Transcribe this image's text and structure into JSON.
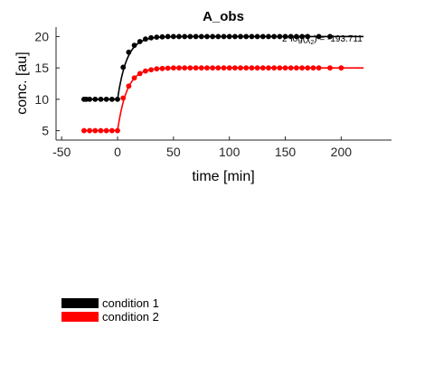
{
  "chart_data": {
    "type": "line",
    "title": "A_obs",
    "xlabel": "time [min]",
    "ylabel": "conc. [au]",
    "xlim": [
      -55,
      245
    ],
    "ylim": [
      3.5,
      21.5
    ],
    "xticks": [
      -50,
      0,
      50,
      100,
      150,
      200
    ],
    "yticks": [
      5,
      10,
      15,
      20
    ],
    "xtick_labels": [
      "-50",
      "0",
      "50",
      "100",
      "150",
      "200"
    ],
    "ytick_labels": [
      "5",
      "10",
      "15",
      "20"
    ],
    "annotation": "2*log(χ²) = -193.711",
    "annotation_parts": {
      "prefix": "2*log(χ",
      "sup": "2",
      "suffix": ") = -193.711"
    },
    "legend_position": "bottom-left (below axes)",
    "series": [
      {
        "name": "condition 1",
        "color": "#000000",
        "baseline": 10,
        "plateau": 20,
        "rate": 0.12,
        "observed_x": [
          -30,
          -28,
          -25,
          -20,
          -15,
          -10,
          -5,
          0,
          5,
          10,
          15,
          20,
          25,
          30,
          35,
          40,
          45,
          50,
          55,
          60,
          65,
          70,
          75,
          80,
          85,
          90,
          95,
          100,
          105,
          110,
          115,
          120,
          125,
          130,
          135,
          140,
          145,
          150,
          155,
          160,
          165,
          170,
          180,
          190
        ],
        "observed_y": [
          10,
          10,
          10,
          10,
          10,
          10,
          10,
          10,
          15.1,
          17.5,
          18.6,
          19.2,
          19.6,
          19.8,
          19.9,
          19.95,
          20,
          20,
          20,
          20,
          20,
          20,
          20,
          20,
          20,
          20,
          20,
          20,
          20,
          20,
          20,
          20,
          20,
          20,
          20,
          20,
          20,
          20,
          20,
          20,
          20,
          20,
          20,
          20
        ]
      },
      {
        "name": "condition 2",
        "color": "#ff0000",
        "baseline": 5,
        "plateau": 15,
        "rate": 0.12,
        "observed_x": [
          -30,
          -25,
          -20,
          -15,
          -10,
          -5,
          0,
          5,
          10,
          15,
          20,
          25,
          30,
          35,
          40,
          45,
          50,
          55,
          60,
          65,
          70,
          75,
          80,
          85,
          90,
          95,
          100,
          105,
          110,
          115,
          120,
          125,
          130,
          135,
          140,
          145,
          150,
          155,
          160,
          165,
          170,
          175,
          180,
          190,
          200
        ],
        "observed_y": [
          5,
          5,
          5,
          5,
          5,
          5,
          5,
          10.2,
          12.1,
          13.4,
          14.1,
          14.5,
          14.7,
          14.85,
          14.9,
          14.95,
          15,
          15,
          15,
          15,
          15,
          15,
          15,
          15,
          15,
          15,
          15,
          15,
          15,
          15,
          15,
          15,
          15,
          15,
          15,
          15,
          15,
          15,
          15,
          15,
          15,
          15,
          15,
          15,
          15
        ]
      }
    ],
    "fit_x_range": [
      -30,
      220
    ]
  }
}
